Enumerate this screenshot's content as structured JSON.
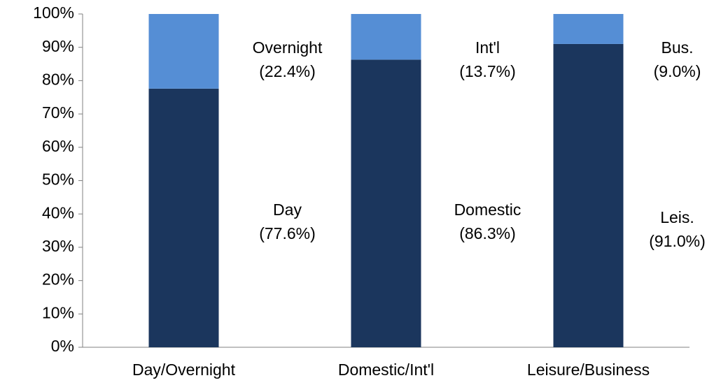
{
  "chart_data": {
    "type": "stacked_bar",
    "categories": [
      "Day/Overnight",
      "Domestic/Int'l",
      "Leisure/Business"
    ],
    "series": [
      {
        "color": "#1b365d",
        "values": [
          77.6,
          86.3,
          91.0
        ],
        "labels": [
          "Day",
          "Domestic",
          "Leis."
        ],
        "value_labels": [
          "(77.6%)",
          "(86.3%)",
          "(91.0%)"
        ]
      },
      {
        "color": "#558ed5",
        "values": [
          22.4,
          13.7,
          9.0
        ],
        "labels": [
          "Overnight",
          "Int'l",
          "Bus."
        ],
        "value_labels": [
          "(22.4%)",
          "(13.7%)",
          "(9.0%)"
        ]
      }
    ],
    "ylim": [
      0,
      100
    ],
    "yticks": [
      {
        "value": 0,
        "label": "0%"
      },
      {
        "value": 10,
        "label": "10%"
      },
      {
        "value": 20,
        "label": "20%"
      },
      {
        "value": 30,
        "label": "30%"
      },
      {
        "value": 40,
        "label": "40%"
      },
      {
        "value": 50,
        "label": "50%"
      },
      {
        "value": 60,
        "label": "60%"
      },
      {
        "value": 70,
        "label": "70%"
      },
      {
        "value": 80,
        "label": "80%"
      },
      {
        "value": 90,
        "label": "90%"
      },
      {
        "value": 100,
        "label": "100%"
      }
    ]
  }
}
